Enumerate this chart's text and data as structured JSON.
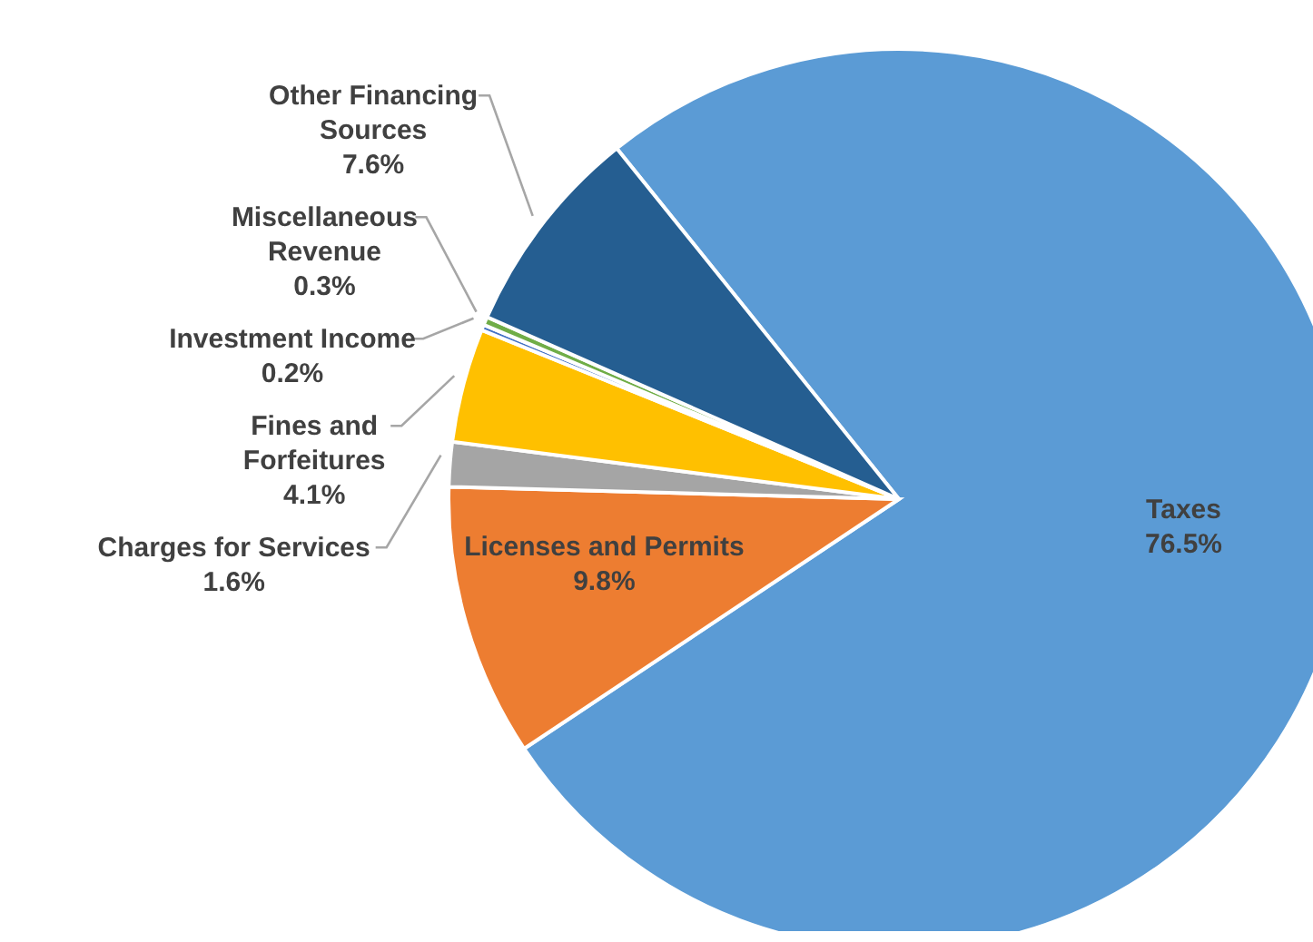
{
  "chart_data": {
    "type": "pie",
    "categories": [
      "Taxes",
      "Licenses and Permits",
      "Charges for Services",
      "Fines and Forfeitures",
      "Investment Income",
      "Miscellaneous Revenue",
      "Other Financing Sources"
    ],
    "values": [
      76.5,
      9.8,
      1.6,
      4.1,
      0.2,
      0.3,
      7.6
    ],
    "value_labels": [
      "76.5%",
      "9.8%",
      "1.6%",
      "4.1%",
      "0.2%",
      "0.3%",
      "7.6%"
    ],
    "colors": [
      "#5b9bd5",
      "#ed7d31",
      "#a5a5a5",
      "#ffc000",
      "#4472c4",
      "#70ad47",
      "#255e91"
    ],
    "legend": false
  }
}
